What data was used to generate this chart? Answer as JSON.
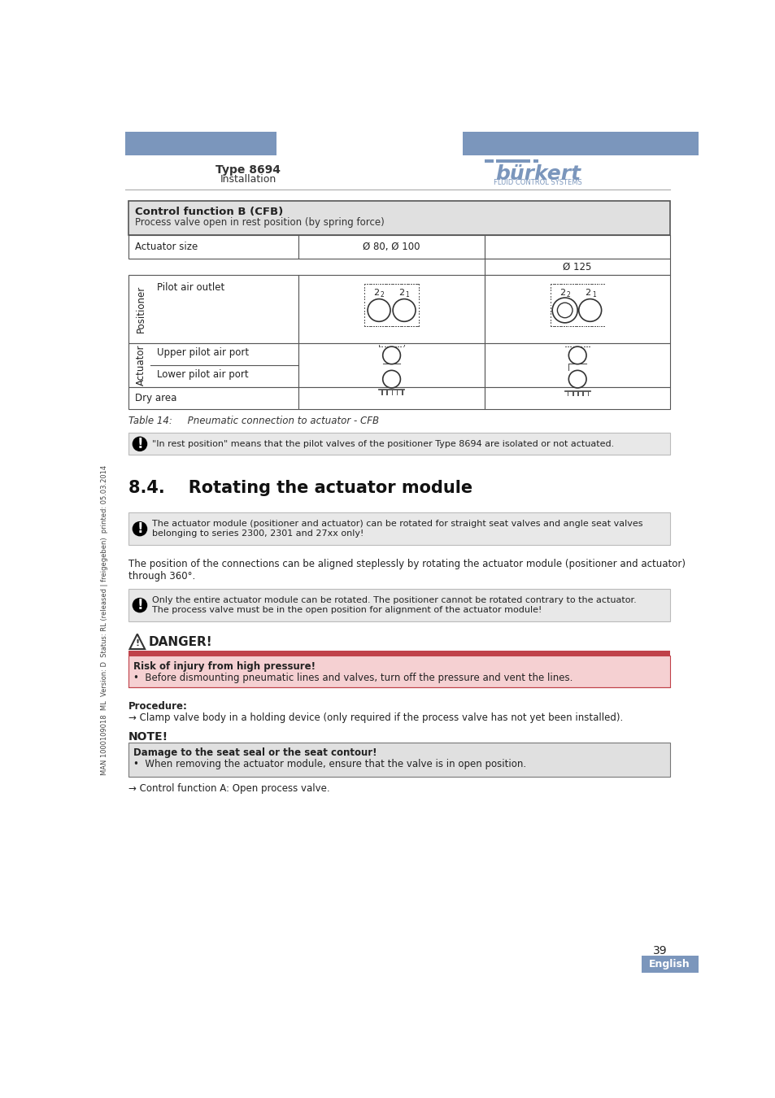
{
  "page_bg": "#ffffff",
  "header_bar_color": "#7b96bc",
  "header_text_left": "Type 8694",
  "header_subtext_left": "Installation",
  "header_logo_text": "bürkert",
  "header_logo_sub": "FLUID CONTROL SYSTEMS",
  "table_header_bg": "#e0e0e0",
  "table_header_title": "Control function B (CFB)",
  "table_header_subtitle": "Process valve open in rest position (by spring force)",
  "note_bg": "#e8e8e8",
  "note1_text": "\"In rest position\" means that the pilot valves of the positioner Type 8694 are isolated or not actuated.",
  "table_caption": "Table 14:     Pneumatic connection to actuator - CFB",
  "section_title": "8.4.    Rotating the actuator module",
  "note2_text": "The actuator module (positioner and actuator) can be rotated for straight seat valves and angle seat valves\nbelonging to series 2300, 2301 and 27xx only!",
  "body_text1": "The position of the connections can be aligned steplessly by rotating the actuator module (positioner and actuator)\nthrough 360°.",
  "note3_text": "Only the entire actuator module can be rotated. The positioner cannot be rotated contrary to the actuator.\nThe process valve must be in the open position for alignment of the actuator module!",
  "danger_title": "DANGER!",
  "danger_bar_color": "#c0424a",
  "danger_bg": "#f5d0d2",
  "danger_subtitle": "Risk of injury from high pressure!",
  "danger_bullet": "Before dismounting pneumatic lines and valves, turn off the pressure and vent the lines.",
  "procedure_text": "Procedure:",
  "procedure_step1": "→ Clamp valve body in a holding device (only required if the process valve has not yet been installed).",
  "note_label_bg": "#e0e0e0",
  "note_label_title": "NOTE!",
  "note_label_subtitle": "Damage to the seat seal or the seat contour!",
  "note_label_bullet": "When removing the actuator module, ensure that the valve is in open position.",
  "note_label_step": "→ Control function A: Open process valve.",
  "page_number": "39",
  "lang_label": "English",
  "sidebar_text": "MAN 1000109018  ML  Version: D  Status: RL (released | freigegeben)  printed: 05.03.2014"
}
